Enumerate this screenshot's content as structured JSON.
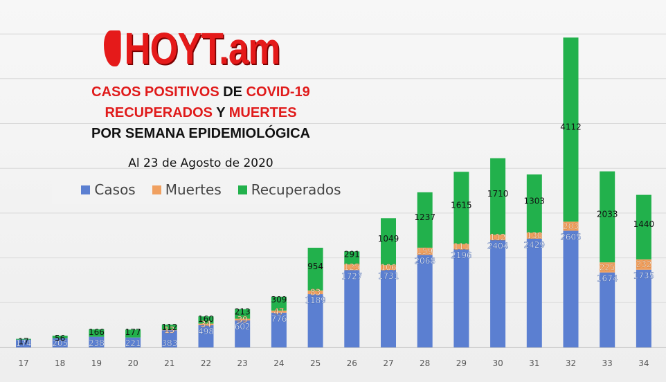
{
  "logo": {
    "text": "HOYT.am"
  },
  "title": {
    "line1": [
      {
        "text": "CASOS POSITIVOS",
        "red": true
      },
      {
        "text": " DE ",
        "red": false
      },
      {
        "text": "COVID-19",
        "red": true
      }
    ],
    "line2": [
      {
        "text": "RECUPERADOS",
        "red": true
      },
      {
        "text": " Y ",
        "red": false
      },
      {
        "text": "MUERTES",
        "red": true
      }
    ],
    "line3": "POR SEMANA EPIDEMIOLÓGICA"
  },
  "subtitle": "Al 23 de Agosto de 2020",
  "colors": {
    "casos": "#5b7fd1",
    "muertes": "#f0a060",
    "recuperados": "#22b14c"
  },
  "chart_data": {
    "type": "bar",
    "stacked": true,
    "categories": [
      "17",
      "18",
      "19",
      "20",
      "21",
      "22",
      "23",
      "24",
      "25",
      "26",
      "27",
      "28",
      "29",
      "30",
      "31",
      "32",
      "33",
      "34"
    ],
    "series": [
      {
        "name": "Casos",
        "values": [
          174,
          205,
          238,
          221,
          383,
          498,
          602,
          776,
          1189,
          1727,
          1731,
          2068,
          2196,
          2404,
          2429,
          2605,
          1674,
          1735
        ]
      },
      {
        "name": "Muertes",
        "values": [
          null,
          null,
          null,
          null,
          13,
          34,
          39,
          47,
          83,
          125,
          106,
          159,
          111,
          112,
          130,
          203,
          225,
          232
        ]
      },
      {
        "name": "Recuperados",
        "values": [
          17,
          56,
          166,
          177,
          112,
          160,
          213,
          309,
          954,
          291,
          1049,
          1237,
          1615,
          1710,
          1303,
          4112,
          2033,
          1440
        ]
      }
    ],
    "legend": "top-left",
    "grid": true
  }
}
